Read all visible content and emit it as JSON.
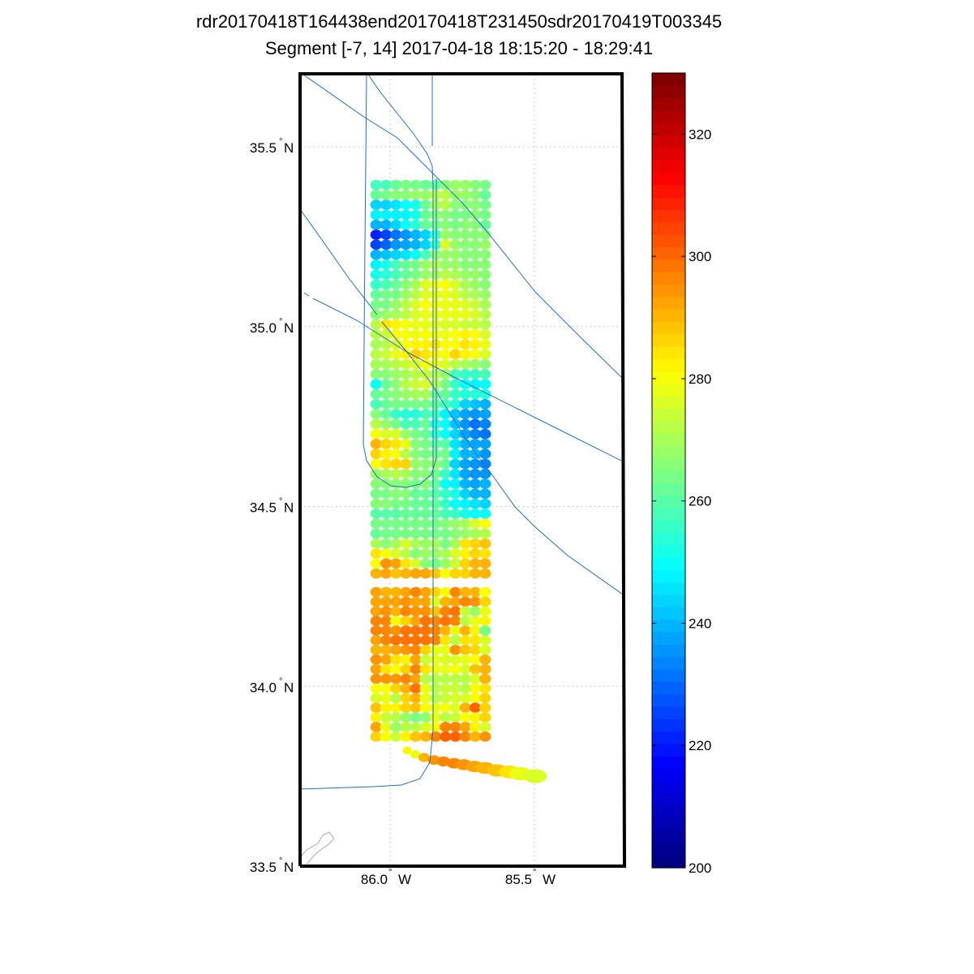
{
  "chart_data": {
    "type": "scatter",
    "title": "rdr20170418T164438end20170418T231450sdr20170419T003345",
    "subtitle": "Segment [-7, 14] 2017-04-18 18:15:20 - 18:29:41",
    "map_extent": {
      "lon": [
        -86.317,
        -85.19
      ],
      "lat": [
        33.5,
        35.705
      ]
    },
    "lat_ticks": [
      {
        "value": 33.5,
        "label": "33.5",
        "hemi": "N"
      },
      {
        "value": 34.0,
        "label": "34.0",
        "hemi": "N"
      },
      {
        "value": 34.5,
        "label": "34.5",
        "hemi": "N"
      },
      {
        "value": 35.0,
        "label": "35.0",
        "hemi": "N"
      },
      {
        "value": 35.5,
        "label": "35.5",
        "hemi": "N"
      }
    ],
    "lon_ticks": [
      {
        "value": -86.0,
        "label": "86.0",
        "hemi": "W"
      },
      {
        "value": -85.5,
        "label": "85.5",
        "hemi": "W"
      }
    ],
    "degree_symbol": "°",
    "grid": true,
    "colorbar": {
      "colormap": "jet",
      "range": [
        200,
        330
      ],
      "ticks": [
        200,
        220,
        240,
        260,
        280,
        300,
        320
      ],
      "levels": 64,
      "placement": "right"
    },
    "grid_points": {
      "lon_start": -86.048,
      "lon_step": 0.0343,
      "blocks": [
        {
          "lat_start": 35.394,
          "lat_step": -0.0277,
          "values": [
            [
              258,
              258,
              262,
              264,
              264,
              262,
              262,
              266,
              268,
              268,
              266,
              264
            ],
            [
              262,
              264,
              266,
              266,
              268,
              268,
              272,
              272,
              268,
              268,
              266,
              262
            ],
            [
              244,
              244,
              246,
              250,
              252,
              262,
              270,
              272,
              266,
              266,
              266,
              264
            ],
            [
              248,
              248,
              248,
              248,
              252,
              262,
              266,
              266,
              264,
              264,
              266,
              264
            ],
            [
              240,
              240,
              244,
              250,
              254,
              262,
              264,
              266,
              264,
              266,
              266,
              262
            ],
            [
              222,
              226,
              232,
              236,
              240,
              244,
              256,
              268,
              266,
              266,
              266,
              266
            ],
            [
              226,
              230,
              236,
              238,
              240,
              244,
              256,
              276,
              268,
              266,
              266,
              268
            ],
            [
              240,
              242,
              244,
              246,
              250,
              258,
              266,
              268,
              268,
              266,
              266,
              266
            ],
            [
              248,
              252,
              258,
              262,
              264,
              268,
              272,
              268,
              268,
              266,
              266,
              266
            ],
            [
              252,
              254,
              258,
              262,
              264,
              268,
              270,
              272,
              270,
              268,
              268,
              266
            ],
            [
              256,
              258,
              262,
              266,
              270,
              276,
              280,
              280,
              276,
              270,
              268,
              266
            ],
            [
              262,
              264,
              264,
              268,
              272,
              276,
              278,
              278,
              276,
              272,
              270,
              268
            ],
            [
              264,
              264,
              268,
              272,
              276,
              280,
              280,
              278,
              278,
              276,
              274,
              270
            ],
            [
              266,
              268,
              270,
              272,
              276,
              278,
              278,
              278,
              278,
              278,
              276,
              272
            ],
            [
              272,
              284,
              282,
              280,
              278,
              278,
              278,
              276,
              276,
              274,
              274,
              272
            ],
            [
              272,
              274,
              280,
              280,
              278,
              280,
              280,
              278,
              280,
              282,
              280,
              276
            ],
            [
              270,
              272,
              276,
              280,
              282,
              282,
              284,
              280,
              280,
              284,
              282,
              278
            ],
            [
              272,
              274,
              278,
              282,
              286,
              284,
              282,
              280,
              286,
              282,
              280,
              276
            ],
            [
              270,
              270,
              272,
              274,
              276,
              280,
              280,
              276,
              272,
              270,
              268,
              266
            ],
            [
              266,
              266,
              268,
              270,
              272,
              274,
              272,
              268,
              258,
              256,
              256,
              258
            ],
            [
              250,
              262,
              266,
              272,
              274,
              276,
              272,
              264,
              256,
              250,
              248,
              250
            ],
            [
              262,
              264,
              266,
              268,
              270,
              270,
              264,
              262,
              256,
              254,
              254,
              254
            ],
            [
              258,
              262,
              264,
              264,
              264,
              264,
              262,
              258,
              254,
              244,
              242,
              240
            ],
            [
              266,
              262,
              256,
              254,
              254,
              258,
              258,
              248,
              242,
              238,
              236,
              238
            ],
            [
              272,
              268,
              264,
              258,
              258,
              262,
              254,
              250,
              242,
              236,
              232,
              234
            ],
            [
              280,
              276,
              276,
              268,
              264,
              262,
              256,
              250,
              244,
              238,
              234,
              232
            ],
            [
              290,
              286,
              284,
              278,
              266,
              264,
              262,
              260,
              246,
              240,
              238,
              238
            ],
            [
              286,
              282,
              280,
              272,
              266,
              264,
              264,
              264,
              248,
              240,
              240,
              236
            ],
            [
              280,
              284,
              286,
              286,
              268,
              266,
              268,
              262,
              244,
              238,
              236,
              234
            ],
            [
              268,
              270,
              272,
              270,
              266,
              266,
              264,
              256,
              246,
              238,
              236,
              236
            ],
            [
              266,
              266,
              266,
              266,
              264,
              266,
              262,
              250,
              248,
              240,
              238,
              240
            ],
            [
              264,
              264,
              266,
              266,
              262,
              262,
              260,
              256,
              252,
              244,
              240,
              240
            ],
            [
              266,
              266,
              264,
              264,
              262,
              262,
              262,
              256,
              250,
              248,
              246,
              244
            ],
            [
              260,
              260,
              260,
              262,
              262,
              262,
              262,
              258,
              256,
              252,
              250,
              250
            ],
            [
              264,
              264,
              264,
              264,
              264,
              264,
              264,
              266,
              268,
              270,
              276,
              280
            ],
            [
              262,
              264,
              264,
              264,
              264,
              264,
              264,
              264,
              266,
              268,
              270,
              272
            ],
            [
              270,
              266,
              270,
              276,
              270,
              268,
              270,
              264,
              270,
              284,
              286,
              288
            ],
            [
              284,
              280,
              276,
              272,
              266,
              268,
              268,
              270,
              276,
              282,
              286,
              284
            ],
            [
              280,
              294,
              292,
              284,
              276,
              266,
              264,
              268,
              274,
              286,
              290,
              290
            ],
            [
              290,
              292,
              288,
              290,
              292,
              292,
              288,
              280,
              286,
              286,
              290,
              290
            ]
          ]
        },
        {
          "lat_start": 34.262,
          "lat_step": -0.0268,
          "values": [
            [
              292,
              290,
              290,
              292,
              296,
              292,
              286,
              280,
              296,
              290,
              290,
              280
            ],
            [
              292,
              292,
              292,
              294,
              292,
              292,
              276,
              290,
              292,
              296,
              294,
              286
            ],
            [
              292,
              294,
              290,
              296,
              294,
              294,
              288,
              296,
              298,
              274,
              268,
              278
            ],
            [
              296,
              296,
              280,
              286,
              292,
              298,
              296,
              298,
              296,
              272,
              278,
              282
            ],
            [
              296,
              296,
              294,
              298,
              298,
              298,
              296,
              290,
              278,
              290,
              282,
              264
            ],
            [
              292,
              296,
              298,
              298,
              298,
              298,
              296,
              284,
              272,
              284,
              284,
              276
            ],
            [
              290,
              290,
              292,
              294,
              296,
              286,
              278,
              278,
              294,
              288,
              286,
              276
            ],
            [
              294,
              292,
              284,
              282,
              292,
              274,
              278,
              276,
              276,
              278,
              280,
              290
            ],
            [
              292,
              284,
              280,
              286,
              296,
              284,
              278,
              278,
              280,
              276,
              288,
              290
            ],
            [
              294,
              294,
              294,
              296,
              292,
              272,
              272,
              272,
              272,
              272,
              276,
              290
            ],
            [
              280,
              280,
              286,
              290,
              298,
              278,
              272,
              274,
              274,
              272,
              280,
              284
            ],
            [
              276,
              278,
              272,
              286,
              290,
              278,
              272,
              274,
              276,
              276,
              280,
              286
            ],
            [
              288,
              282,
              282,
              286,
              288,
              280,
              278,
              280,
              276,
              290,
              300,
              286
            ],
            [
              282,
              274,
              272,
              268,
              264,
              266,
              278,
              272,
              274,
              280,
              282,
              286
            ],
            [
              292,
              278,
              268,
              272,
              272,
              276,
              280,
              296,
              296,
              292,
              282,
              276
            ],
            [
              286,
              280,
              274,
              282,
              288,
              290,
              296,
              300,
              300,
              296,
              290,
              294
            ]
          ]
        }
      ]
    },
    "tail_points": {
      "lon": [
        -85.941,
        -85.913,
        -85.882,
        -85.848,
        -85.815,
        -85.778,
        -85.744,
        -85.708,
        -85.671,
        -85.629,
        -85.587,
        -85.548,
        -85.497
      ],
      "lat": [
        33.822,
        33.811,
        33.802,
        33.795,
        33.791,
        33.786,
        33.782,
        33.777,
        33.773,
        33.766,
        33.762,
        33.757,
        33.75
      ],
      "values": [
        282,
        278,
        290,
        294,
        296,
        296,
        294,
        292,
        290,
        288,
        284,
        278,
        276
      ]
    },
    "colors": {
      "track_line": "#1f6fbf",
      "frame": "#000000",
      "grid": "#bbbbbb",
      "coastline": "#aaaaaa"
    }
  }
}
